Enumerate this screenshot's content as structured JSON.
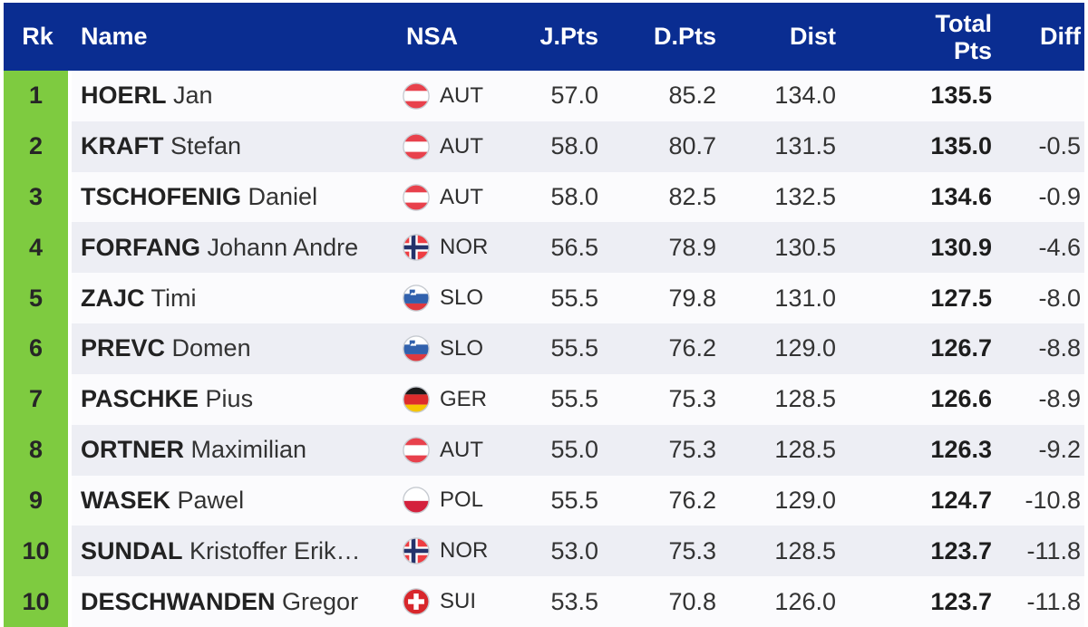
{
  "colors": {
    "header_bg": "#0a2d91",
    "header_text": "#ffffff",
    "rank_bg": "#7ecb40",
    "row_odd": "#fbfbfd",
    "row_even": "#edeef4",
    "text": "#2a2a2a"
  },
  "header": {
    "rk": "Rk",
    "name": "Name",
    "nsa": "NSA",
    "j_pts": "J.Pts",
    "d_pts": "D.Pts",
    "dist": "Dist",
    "total_line1": "Total",
    "total_line2": "Pts",
    "diff": "Diff"
  },
  "rows": [
    {
      "rank": "1",
      "surname": "HOERL",
      "given_name": "Jan",
      "nsa": "AUT",
      "flag": "aut",
      "j_pts": "57.0",
      "d_pts": "85.2",
      "dist": "134.0",
      "total_pts": "135.5",
      "diff": ""
    },
    {
      "rank": "2",
      "surname": "KRAFT",
      "given_name": "Stefan",
      "nsa": "AUT",
      "flag": "aut",
      "j_pts": "58.0",
      "d_pts": "80.7",
      "dist": "131.5",
      "total_pts": "135.0",
      "diff": "-0.5"
    },
    {
      "rank": "3",
      "surname": "TSCHOFENIG",
      "given_name": "Daniel",
      "nsa": "AUT",
      "flag": "aut",
      "j_pts": "58.0",
      "d_pts": "82.5",
      "dist": "132.5",
      "total_pts": "134.6",
      "diff": "-0.9"
    },
    {
      "rank": "4",
      "surname": "FORFANG",
      "given_name": "Johann Andre",
      "nsa": "NOR",
      "flag": "nor",
      "j_pts": "56.5",
      "d_pts": "78.9",
      "dist": "130.5",
      "total_pts": "130.9",
      "diff": "-4.6"
    },
    {
      "rank": "5",
      "surname": "ZAJC",
      "given_name": "Timi",
      "nsa": "SLO",
      "flag": "slo",
      "j_pts": "55.5",
      "d_pts": "79.8",
      "dist": "131.0",
      "total_pts": "127.5",
      "diff": "-8.0"
    },
    {
      "rank": "6",
      "surname": "PREVC",
      "given_name": "Domen",
      "nsa": "SLO",
      "flag": "slo",
      "j_pts": "55.5",
      "d_pts": "76.2",
      "dist": "129.0",
      "total_pts": "126.7",
      "diff": "-8.8"
    },
    {
      "rank": "7",
      "surname": "PASCHKE",
      "given_name": "Pius",
      "nsa": "GER",
      "flag": "ger",
      "j_pts": "55.5",
      "d_pts": "75.3",
      "dist": "128.5",
      "total_pts": "126.6",
      "diff": "-8.9"
    },
    {
      "rank": "8",
      "surname": "ORTNER",
      "given_name": "Maximilian",
      "nsa": "AUT",
      "flag": "aut",
      "j_pts": "55.0",
      "d_pts": "75.3",
      "dist": "128.5",
      "total_pts": "126.3",
      "diff": "-9.2"
    },
    {
      "rank": "9",
      "surname": "WASEK",
      "given_name": "Pawel",
      "nsa": "POL",
      "flag": "pol",
      "j_pts": "55.5",
      "d_pts": "76.2",
      "dist": "129.0",
      "total_pts": "124.7",
      "diff": "-10.8"
    },
    {
      "rank": "10",
      "surname": "SUNDAL",
      "given_name": "Kristoffer Erik…",
      "nsa": "NOR",
      "flag": "nor",
      "j_pts": "53.0",
      "d_pts": "75.3",
      "dist": "128.5",
      "total_pts": "123.7",
      "diff": "-11.8"
    },
    {
      "rank": "10",
      "surname": "DESCHWANDEN",
      "given_name": "Gregor",
      "nsa": "SUI",
      "flag": "sui",
      "j_pts": "53.5",
      "d_pts": "70.8",
      "dist": "126.0",
      "total_pts": "123.7",
      "diff": "-11.8"
    }
  ]
}
